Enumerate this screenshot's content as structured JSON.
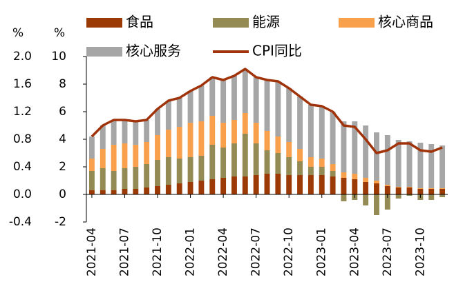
{
  "chart_data": {
    "type": "stacked_bar_line",
    "y_label": "%",
    "y2_label": "%",
    "categories": [
      "2021-04",
      null,
      null,
      "2021-07",
      null,
      null,
      "2021-10",
      null,
      null,
      "2022-01",
      null,
      null,
      "2022-04",
      null,
      null,
      "2022-07",
      null,
      null,
      "2022-10",
      null,
      null,
      "2023-01",
      null,
      null,
      "2023-04",
      null,
      null,
      "2023-07",
      null,
      null,
      "2023-10",
      null,
      null
    ],
    "series": [
      {
        "name": "食品",
        "type": "bar",
        "axis": "y2",
        "color": "#9c3a06",
        "values": [
          0.3,
          0.3,
          0.3,
          0.4,
          0.4,
          0.5,
          0.6,
          0.7,
          0.8,
          0.9,
          1.0,
          1.1,
          1.2,
          1.3,
          1.3,
          1.4,
          1.5,
          1.5,
          1.4,
          1.4,
          1.4,
          1.4,
          1.3,
          1.2,
          1.1,
          0.9,
          0.8,
          0.6,
          0.5,
          0.5,
          0.4,
          0.4,
          0.4
        ]
      },
      {
        "name": "能源",
        "type": "bar",
        "axis": "y2",
        "color": "#948a54",
        "values": [
          1.4,
          1.6,
          1.4,
          1.5,
          1.6,
          1.7,
          1.9,
          2.0,
          1.8,
          1.8,
          1.8,
          2.5,
          2.2,
          2.4,
          3.1,
          2.3,
          1.7,
          1.5,
          1.3,
          1.0,
          0.6,
          0.6,
          0.4,
          -0.5,
          -0.4,
          -0.8,
          -1.5,
          -1.1,
          -0.3,
          -0.1,
          -0.4,
          -0.4,
          -0.2
        ]
      },
      {
        "name": "核心商品",
        "type": "bar",
        "axis": "y2",
        "color": "#f9a04d",
        "values": [
          0.9,
          1.4,
          1.9,
          1.8,
          1.6,
          1.6,
          1.8,
          2.0,
          2.3,
          2.5,
          2.5,
          2.1,
          1.8,
          1.7,
          1.5,
          1.5,
          1.4,
          1.2,
          1.1,
          0.9,
          0.7,
          0.6,
          0.5,
          0.4,
          0.4,
          0.3,
          0.2,
          0.1,
          0.05,
          0.05,
          0.05,
          0.05,
          0.05
        ]
      },
      {
        "name": "核心服务",
        "type": "bar",
        "axis": "y2",
        "color": "#a6a6a6",
        "values": [
          1.6,
          1.7,
          1.8,
          1.7,
          1.7,
          1.6,
          1.9,
          2.1,
          2.1,
          2.3,
          2.6,
          2.8,
          3.1,
          3.2,
          3.2,
          3.3,
          3.7,
          4.0,
          3.9,
          3.8,
          3.8,
          3.8,
          3.8,
          3.7,
          3.8,
          3.8,
          3.5,
          3.6,
          3.4,
          3.3,
          3.3,
          3.2,
          3.1
        ]
      },
      {
        "name": "CPI同比",
        "type": "line",
        "axis": "y2",
        "color": "#a0330a",
        "values": [
          4.2,
          5.0,
          5.4,
          5.4,
          5.3,
          5.4,
          6.2,
          6.8,
          7.0,
          7.5,
          7.9,
          8.5,
          8.3,
          8.6,
          9.1,
          8.5,
          8.3,
          8.2,
          7.7,
          7.1,
          6.5,
          6.4,
          6.0,
          5.0,
          4.9,
          4.0,
          3.0,
          3.2,
          3.7,
          3.7,
          3.2,
          3.1,
          3.4
        ]
      }
    ],
    "ylim": [
      -0.4,
      2.0
    ],
    "yticks": [
      -0.4,
      {
        "value": 0,
        "label": "0.0"
      },
      0.4,
      0.8,
      1.2,
      1.6,
      {
        "value": 2,
        "label": "2.0"
      }
    ],
    "y2lim": [
      -2,
      10
    ],
    "y2ticks": [
      -2,
      0,
      2,
      4,
      6,
      8,
      10
    ],
    "grid": false
  }
}
